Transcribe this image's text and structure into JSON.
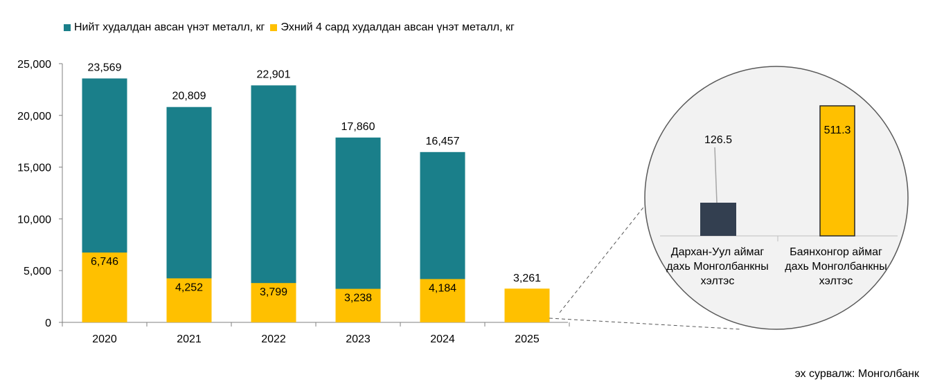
{
  "chart_data": {
    "type": "bar",
    "stacked": false,
    "categories": [
      "2020",
      "2021",
      "2022",
      "2023",
      "2024",
      "2025"
    ],
    "series": [
      {
        "name": "Нийт худалдан авсан үнэт металл, кг",
        "color": "#1A7F8A",
        "values": [
          23569,
          20809,
          22901,
          17860,
          16457,
          null
        ],
        "labels": [
          "23,569",
          "20,809",
          "22,901",
          "17,860",
          "16,457",
          ""
        ]
      },
      {
        "name": "Эхний 4 сард худалдан авсан үнэт металл, кг",
        "color": "#FFC000",
        "values": [
          6746,
          4252,
          3799,
          3238,
          4184,
          3261
        ],
        "labels": [
          "6,746",
          "4,252",
          "3,799",
          "3,238",
          "4,184",
          "3,261"
        ]
      }
    ],
    "ylim": [
      0,
      25000
    ],
    "yticks": [
      "0",
      "5,000",
      "10,000",
      "15,000",
      "20,000",
      "25,000"
    ],
    "legend_position": "top-left",
    "grid": false,
    "inset": {
      "type": "bar",
      "categories": [
        "Дархан-Уул аймаг дахь Монголбанкны хэлтэс",
        "Баянхонгор аймаг дахь Монголбанкны хэлтэс"
      ],
      "category_lines": [
        [
          "Дархан-Уул аймаг",
          "дахь Монголбанкны",
          "хэлтэс"
        ],
        [
          "Баянхонгор аймаг",
          "дахь Монголбанкны",
          "хэлтэс"
        ]
      ],
      "values": [
        126.5,
        511.3
      ],
      "labels": [
        "126.5",
        "511.3"
      ],
      "colors": [
        "#333F50",
        "#FFC000"
      ]
    }
  },
  "colors": {
    "total": "#1A7F8A",
    "first4": "#FFC000",
    "darkbar": "#333F50",
    "axis": "#7F7F7F"
  },
  "source": "эх сурвалж: Монголбанк"
}
